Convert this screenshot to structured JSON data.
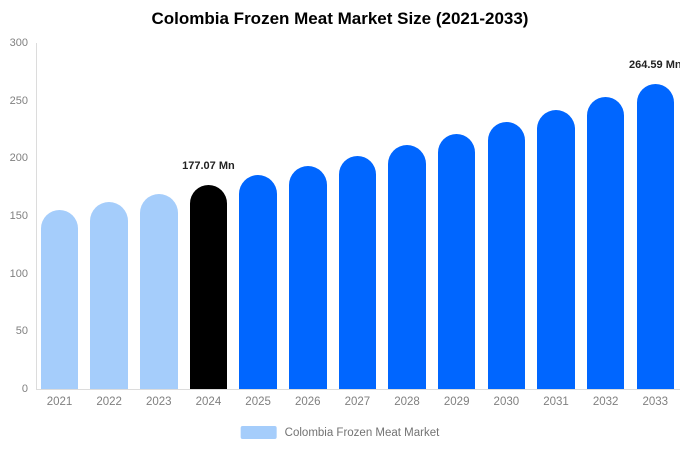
{
  "chart_data": {
    "type": "bar",
    "title": "Colombia Frozen Meat Market Size (2021-2033)",
    "xlabel": "",
    "ylabel": "",
    "unit": "Mn",
    "categories": [
      "2021",
      "2022",
      "2023",
      "2024",
      "2025",
      "2026",
      "2027",
      "2028",
      "2029",
      "2030",
      "2031",
      "2032",
      "2033"
    ],
    "values": [
      154.88,
      161.95,
      169.35,
      177.07,
      185.16,
      193.61,
      202.45,
      211.69,
      221.35,
      231.45,
      242.02,
      253.06,
      264.59
    ],
    "bar_styles": [
      "historical",
      "historical",
      "historical",
      "current",
      "forecast",
      "forecast",
      "forecast",
      "forecast",
      "forecast",
      "forecast",
      "forecast",
      "forecast",
      "forecast"
    ],
    "annotations": [
      {
        "category": "2024",
        "text": "177.07 Mn"
      },
      {
        "category": "2033",
        "text": "264.59 Mn"
      }
    ],
    "ylim": [
      0,
      300
    ],
    "yticks": [
      0,
      50,
      100,
      150,
      200,
      250,
      300
    ],
    "grid": false,
    "legend_position": "bottom"
  },
  "colors": {
    "historical": "#A5CDFB",
    "current": "#000000",
    "forecast": "#0066FF",
    "axis_line": "#DCDCDC",
    "axis_text": "#808080",
    "annotation_text": "#222222"
  },
  "legend": {
    "label": "Colombia Frozen Meat Market",
    "swatch_color": "#A5CDFB"
  }
}
